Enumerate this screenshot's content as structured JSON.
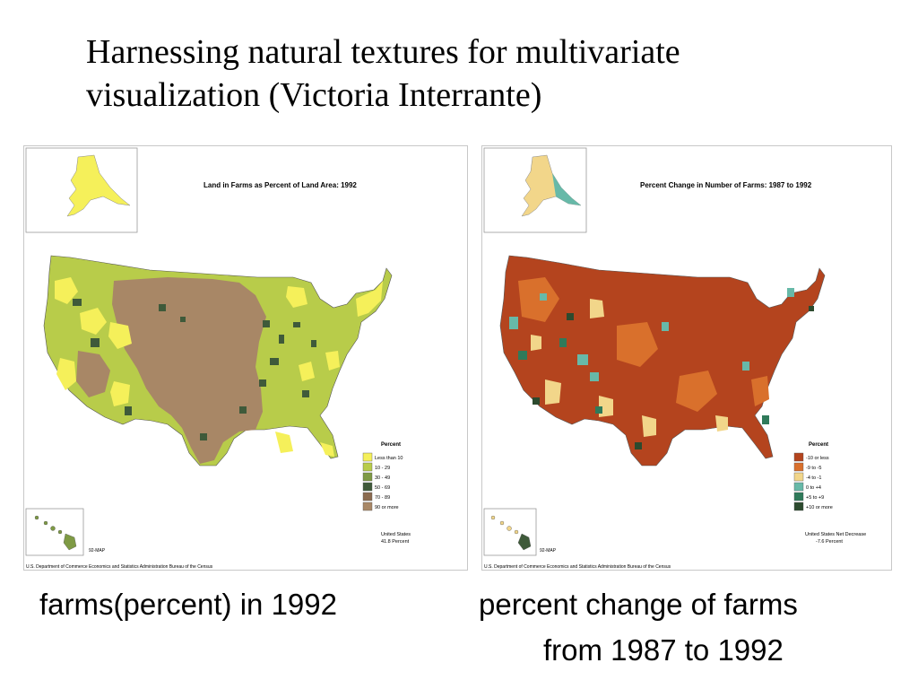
{
  "slide": {
    "title_line1": "Harnessing natural textures for multivariate",
    "title_line2": "visualization (Victoria Interrante)"
  },
  "maps": [
    {
      "title": "Land in Farms as Percent of Land Area: 1992",
      "legend_title": "Percent",
      "legend": [
        {
          "label": "Less than 10",
          "color": "#f5f05a"
        },
        {
          "label": "10 - 29",
          "color": "#b8cc4a"
        },
        {
          "label": "30 - 49",
          "color": "#7e9a44"
        },
        {
          "label": "50 - 69",
          "color": "#3f5a3a"
        },
        {
          "label": "70 - 89",
          "color": "#8b6b4f"
        },
        {
          "label": "90 or more",
          "color": "#a88766"
        }
      ],
      "note_line1": "United States",
      "note_line2": "41.8 Percent",
      "map_code": "92-MAP",
      "footer": "U.S. Department of Commerce   Economics and Statistics Administration   Bureau of the Census"
    },
    {
      "title": "Percent Change in Number of Farms: 1987 to 1992",
      "legend_title": "Percent",
      "legend": [
        {
          "label": "-10 or less",
          "color": "#b4441e"
        },
        {
          "label": "-9 to -5",
          "color": "#d9702c"
        },
        {
          "label": "-4 to -1",
          "color": "#f2d68a"
        },
        {
          "label": "0 to +4",
          "color": "#67b9a8"
        },
        {
          "label": "+5 to +9",
          "color": "#2f7a5a"
        },
        {
          "label": "+10 or more",
          "color": "#2c4a2e"
        }
      ],
      "note_line1": "United States Net Decrease",
      "note_line2": "-7.6 Percent",
      "map_code": "92-MAP",
      "footer": "U.S. Department of Commerce   Economics and Statistics Administration   Bureau of the Census"
    }
  ],
  "captions": {
    "left": "farms(percent) in 1992",
    "right_line1": "percent change of farms",
    "right_line2": "from 1987 to 1992"
  }
}
